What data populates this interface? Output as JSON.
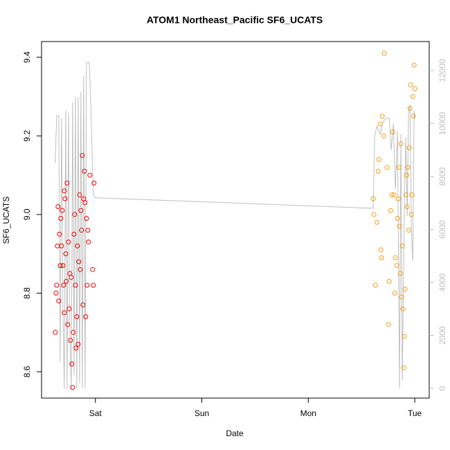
{
  "chart_data": {
    "type": "scatter",
    "title": "ATOM1 Northeast_Pacific SF6_UCATS",
    "x_label": "Date",
    "y_label": "SF6_UCATS",
    "xlim": [
      -0.506,
      3.136
    ],
    "xticks": [
      {
        "value": 0,
        "label": "Sat"
      },
      {
        "value": 1,
        "label": "Sun"
      },
      {
        "value": 2,
        "label": "Mon"
      },
      {
        "value": 3,
        "label": "Tue"
      }
    ],
    "ylim": [
      8.533,
      9.44
    ],
    "yticks": [
      8.6,
      8.8,
      {
        "value": 9,
        "label": "9.0"
      },
      9.2,
      9.4
    ],
    "y2lim": [
      -366,
      13098
    ],
    "y2ticks": [
      0,
      2000,
      4000,
      6000,
      8000,
      10000,
      12000
    ],
    "y2_color": "#bfbfbf",
    "series": [
      {
        "kind": "points",
        "color": "#ee0000",
        "x": [
          -0.377,
          -0.37,
          -0.364,
          -0.357,
          -0.351,
          -0.344,
          -0.338,
          -0.331,
          -0.325,
          -0.318,
          -0.312,
          -0.305,
          -0.299,
          -0.292,
          -0.292,
          -0.286,
          -0.279,
          -0.273,
          -0.266,
          -0.26,
          -0.253,
          -0.247,
          -0.24,
          -0.234,
          -0.227,
          -0.221,
          -0.214,
          -0.208,
          -0.201,
          -0.195,
          -0.188,
          -0.182,
          -0.175,
          -0.169,
          -0.162,
          -0.156,
          -0.149,
          -0.143,
          -0.136,
          -0.13,
          -0.123,
          -0.117,
          -0.11,
          -0.104,
          -0.097,
          -0.091,
          -0.084,
          -0.078,
          -0.071,
          -0.065,
          -0.052,
          -0.026,
          -0.019,
          -0.013
        ],
        "values": [
          8.7,
          8.8,
          8.82,
          8.92,
          9.02,
          8.78,
          8.95,
          8.87,
          8.99,
          8.92,
          9.01,
          8.87,
          8.82,
          9.06,
          8.75,
          9.04,
          8.9,
          8.83,
          9.08,
          8.72,
          8.93,
          8.76,
          8.85,
          8.68,
          8.84,
          8.62,
          8.56,
          8.7,
          8.95,
          9.0,
          8.82,
          8.66,
          8.74,
          8.92,
          8.67,
          8.88,
          9.05,
          8.86,
          9.01,
          8.96,
          9.15,
          8.77,
          9.04,
          9.11,
          9.03,
          8.74,
          8.99,
          8.82,
          8.96,
          8.93,
          9.1,
          8.86,
          8.82,
          9.08
        ]
      },
      {
        "kind": "points",
        "color": "#f39c12",
        "x": [
          2.61,
          2.617,
          2.63,
          2.643,
          2.656,
          2.662,
          2.675,
          2.682,
          2.688,
          2.695,
          2.708,
          2.714,
          2.74,
          2.753,
          2.76,
          2.773,
          2.786,
          2.792,
          2.805,
          2.812,
          2.818,
          2.831,
          2.838,
          2.844,
          2.851,
          2.857,
          2.864,
          2.87,
          2.877,
          2.883,
          2.89,
          2.896,
          2.903,
          2.909,
          2.916,
          2.922,
          2.929,
          2.935,
          2.942,
          2.948,
          2.955,
          2.961,
          2.968,
          2.974,
          2.981,
          2.987,
          2.994,
          3.0
        ],
        "values": [
          9.04,
          9.0,
          8.82,
          8.98,
          9.11,
          9.14,
          9.23,
          8.91,
          8.89,
          9.25,
          9.2,
          9.41,
          9.12,
          8.72,
          8.83,
          9.01,
          9.05,
          9.21,
          9.05,
          8.8,
          8.89,
          8.87,
          8.99,
          9.04,
          9.12,
          8.97,
          8.85,
          9.18,
          8.79,
          8.92,
          8.76,
          8.61,
          8.69,
          8.81,
          9.05,
          9.1,
          9.02,
          9.12,
          8.96,
          9.17,
          9.27,
          9.33,
          9.0,
          9.05,
          9.3,
          9.25,
          9.38,
          9.32
        ]
      },
      {
        "kind": "line",
        "axis": "y2",
        "color": "#bfbfbf",
        "x": [
          -0.377,
          -0.364,
          -0.344,
          -0.331,
          -0.318,
          -0.305,
          -0.292,
          -0.279,
          -0.266,
          -0.253,
          -0.24,
          -0.227,
          -0.214,
          -0.201,
          -0.188,
          -0.175,
          -0.162,
          -0.149,
          -0.136,
          -0.123,
          -0.11,
          -0.097,
          -0.084,
          -0.071,
          -0.058,
          -0.045,
          -0.032,
          -0.019,
          -0.006,
          2.61,
          2.623,
          2.643,
          2.675,
          2.695,
          2.727,
          2.76,
          2.779,
          2.799,
          2.818,
          2.838,
          2.857,
          2.87,
          2.883,
          2.903,
          2.916,
          2.929,
          2.942,
          2.955,
          2.968,
          2.981,
          2.994,
          3.0
        ],
        "values": [
          8500,
          10300,
          10300,
          1000,
          10200,
          3000,
          0,
          10500,
          0,
          10400,
          2000,
          0,
          10800,
          500,
          11000,
          0,
          11000,
          200,
          11200,
          0,
          11800,
          0,
          12300,
          12300,
          12300,
          11000,
          9000,
          7300,
          7200,
          6800,
          9500,
          9900,
          9600,
          10000,
          10200,
          10200,
          9000,
          10000,
          7500,
          9700,
          0,
          9600,
          300,
          7000,
          9500,
          6500,
          10500,
          10700,
          6000,
          4800,
          10500,
          10200
        ]
      }
    ]
  }
}
